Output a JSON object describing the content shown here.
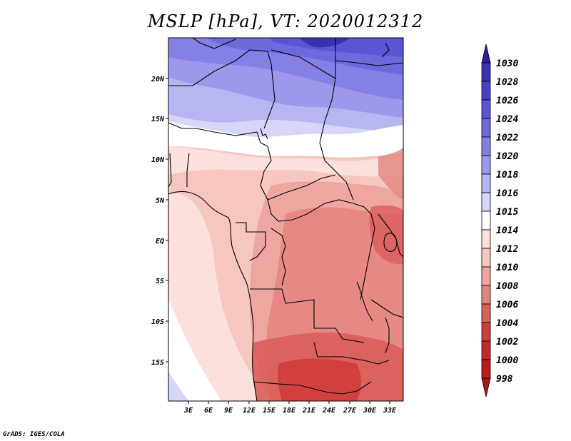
{
  "header": {
    "title": "MSLP [hPa], VT: 2020012312"
  },
  "footer": {
    "credit": "GrADS: IGES/COLA"
  },
  "map": {
    "variable": "Mean Sea Level Pressure",
    "units": "hPa",
    "valid_time": "2020012312",
    "region": "Central Africa",
    "lon_range_deg": [
      0,
      35
    ],
    "lat_range_deg": [
      -20,
      25
    ],
    "lat_labels": [
      "20N",
      "15N",
      "10N",
      "5N",
      "EQ",
      "5S",
      "10S",
      "15S"
    ],
    "lon_labels": [
      "3E",
      "6E",
      "9E",
      "12E",
      "15E",
      "18E",
      "21E",
      "24E",
      "27E",
      "30E",
      "33E"
    ]
  },
  "colorbar": {
    "labels": [
      "1030",
      "1028",
      "1026",
      "1024",
      "1022",
      "1020",
      "1018",
      "1016",
      "1015",
      "1014",
      "1012",
      "1010",
      "1008",
      "1006",
      "1004",
      "1002",
      "1000",
      "998"
    ],
    "colors": [
      "#2b1f9c",
      "#3a30b4",
      "#4a40c8",
      "#5a55d4",
      "#6e6ade",
      "#8480e6",
      "#9c99ec",
      "#b8b6f2",
      "#d6d6f8",
      "#ffffff",
      "#fbe0dc",
      "#f6c6c0",
      "#eea6a0",
      "#e48480",
      "#da5e5a",
      "#d03c3c",
      "#c42a2a",
      "#b81e1e",
      "#a81616"
    ]
  }
}
